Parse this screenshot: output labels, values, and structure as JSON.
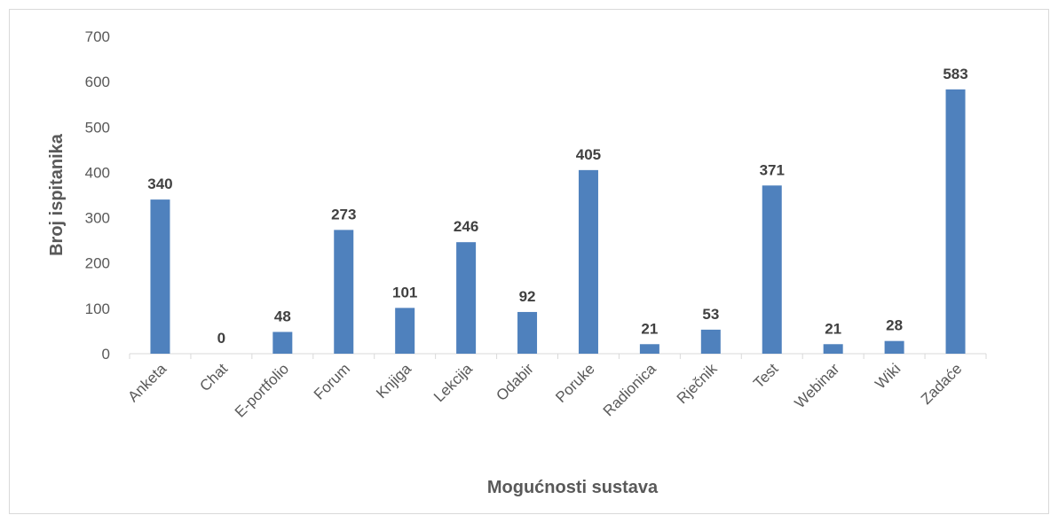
{
  "chart_data": {
    "type": "bar",
    "x_label": "Mogućnosti sustava",
    "y_label": "Broj ispitanika",
    "categories": [
      "Anketa",
      "Chat",
      "E-portfolio",
      "Forum",
      "Knjiga",
      "Lekcija",
      "Odabir",
      "Poruke",
      "Radionica",
      "Rječnik",
      "Test",
      "Webinar",
      "Wiki",
      "Zadaće"
    ],
    "values": [
      340,
      0,
      48,
      273,
      101,
      246,
      92,
      405,
      21,
      53,
      371,
      21,
      28,
      583
    ],
    "color": "#4f81bd",
    "ylim": [
      0,
      700
    ],
    "yticks": [
      0,
      100,
      200,
      300,
      400,
      500,
      600,
      700
    ],
    "grid": false
  }
}
